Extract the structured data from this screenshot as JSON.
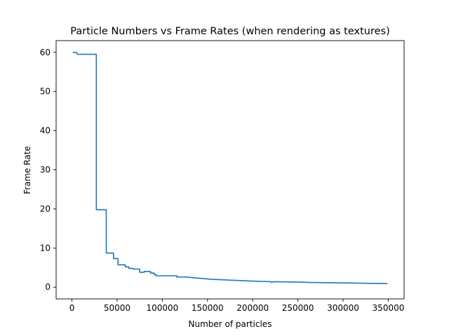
{
  "chart_data": {
    "type": "line",
    "title": "Particle Numbers vs Frame Rates (when rendering as textures)",
    "xlabel": "Number of particles",
    "ylabel": "Frame Rate",
    "xlim": [
      -17500,
      367500
    ],
    "ylim": [
      -3,
      63
    ],
    "xticks": [
      0,
      50000,
      100000,
      150000,
      200000,
      250000,
      300000,
      350000
    ],
    "xtick_labels": [
      "0",
      "50000",
      "100000",
      "150000",
      "200000",
      "250000",
      "300000",
      "350000"
    ],
    "yticks": [
      0,
      10,
      20,
      30,
      40,
      50,
      60
    ],
    "ytick_labels": [
      "0",
      "10",
      "20",
      "30",
      "40",
      "50",
      "60"
    ],
    "grid": false,
    "legend": "none",
    "series": [
      {
        "color": "#1f77b4",
        "step": true,
        "points": [
          [
            1000,
            60.0
          ],
          [
            5000,
            60.0
          ],
          [
            6000,
            59.5
          ],
          [
            27000,
            59.5
          ],
          [
            27000,
            19.8
          ],
          [
            38000,
            19.8
          ],
          [
            38000,
            8.7
          ],
          [
            46000,
            8.7
          ],
          [
            46000,
            7.3
          ],
          [
            51000,
            7.3
          ],
          [
            51000,
            5.7
          ],
          [
            59000,
            5.7
          ],
          [
            59000,
            5.2
          ],
          [
            63000,
            5.2
          ],
          [
            63000,
            4.8
          ],
          [
            68000,
            4.8
          ],
          [
            68000,
            4.6
          ],
          [
            75000,
            4.6
          ],
          [
            75000,
            3.8
          ],
          [
            80000,
            3.8
          ],
          [
            80000,
            4.0
          ],
          [
            87000,
            4.0
          ],
          [
            87000,
            3.6
          ],
          [
            91000,
            3.6
          ],
          [
            91000,
            3.2
          ],
          [
            93000,
            3.2
          ],
          [
            93000,
            2.9
          ],
          [
            116000,
            2.9
          ],
          [
            116000,
            2.6
          ],
          [
            126000,
            2.6
          ],
          [
            135000,
            2.4
          ],
          [
            145000,
            2.2
          ],
          [
            155000,
            2.0
          ],
          [
            165000,
            1.9
          ],
          [
            175000,
            1.8
          ],
          [
            185000,
            1.7
          ],
          [
            195000,
            1.6
          ],
          [
            205000,
            1.5
          ],
          [
            215000,
            1.45
          ],
          [
            220000,
            1.4
          ],
          [
            221000,
            1.2
          ],
          [
            223000,
            1.4
          ],
          [
            235000,
            1.35
          ],
          [
            250000,
            1.3
          ],
          [
            265000,
            1.2
          ],
          [
            280000,
            1.15
          ],
          [
            295000,
            1.1
          ],
          [
            310000,
            1.05
          ],
          [
            325000,
            1.0
          ],
          [
            340000,
            0.95
          ],
          [
            349000,
            0.9
          ]
        ]
      }
    ]
  }
}
